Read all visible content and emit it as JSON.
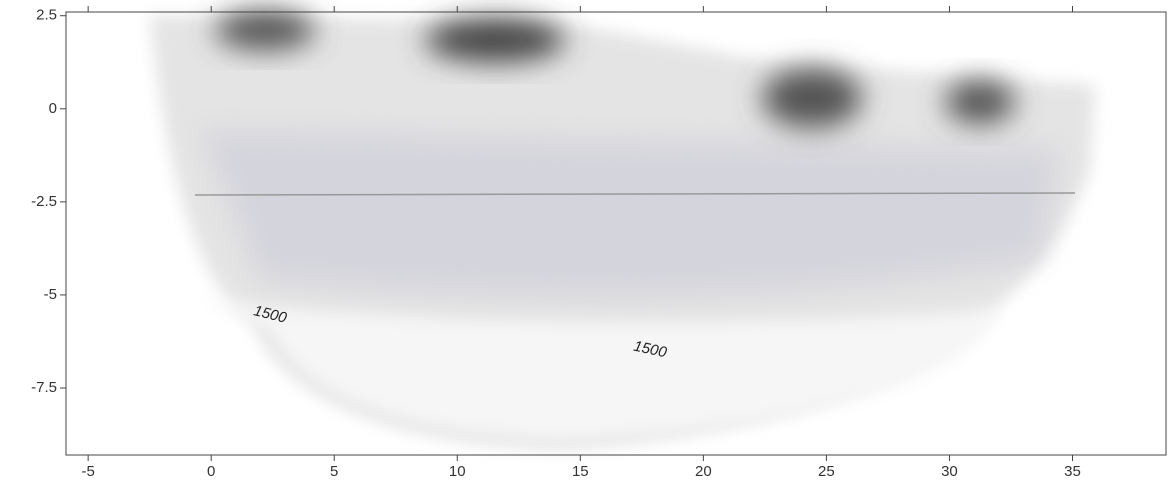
{
  "chart_data": {
    "type": "contour",
    "annotations": [
      "1500",
      "1500"
    ],
    "xlim": [
      -5.9,
      38.8
    ],
    "xticks": [
      -5,
      0,
      5,
      10,
      15,
      20,
      25,
      30,
      35
    ],
    "ylim": [
      -9.3,
      2.6
    ],
    "yticks": [
      2.5,
      0,
      -2.5,
      -5,
      -7.5
    ]
  }
}
